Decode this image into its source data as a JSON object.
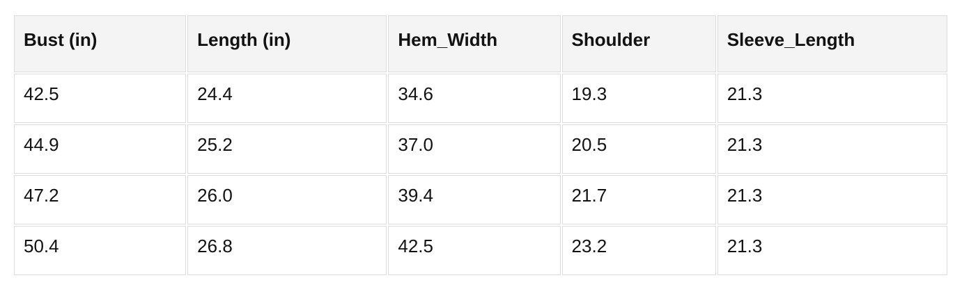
{
  "table": {
    "headers": [
      "Bust (in)",
      "Length (in)",
      "Hem_Width",
      "Shoulder",
      "Sleeve_Length"
    ],
    "rows": [
      [
        "42.5",
        "24.4",
        "34.6",
        "19.3",
        "21.3"
      ],
      [
        "44.9",
        "25.2",
        "37.0",
        "20.5",
        "21.3"
      ],
      [
        "47.2",
        "26.0",
        "39.4",
        "21.7",
        "21.3"
      ],
      [
        "50.4",
        "26.8",
        "42.5",
        "23.2",
        "21.3"
      ]
    ]
  },
  "colors": {
    "page_background": "#ffffff",
    "header_background": "#f4f4f4",
    "cell_background": "#ffffff",
    "border": "#dcdcdc",
    "text": "#121212"
  }
}
